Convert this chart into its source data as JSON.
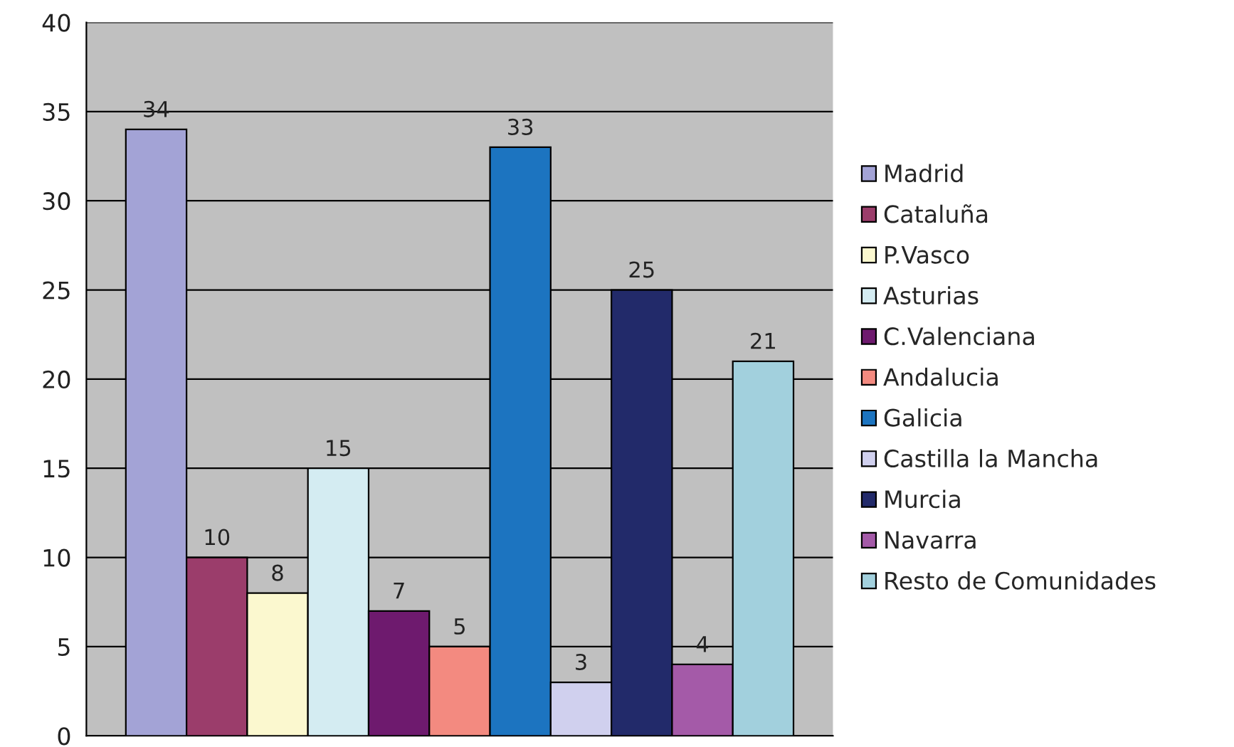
{
  "chart_data": {
    "type": "bar",
    "categories": [
      null
    ],
    "series": [
      {
        "name": "Madrid",
        "color": "#a3a3d6",
        "values": [
          34
        ]
      },
      {
        "name": "Cataluña",
        "color": "#9b3d6b",
        "values": [
          10
        ]
      },
      {
        "name": "P.Vasco",
        "color": "#fbf8cf",
        "values": [
          8
        ]
      },
      {
        "name": "Asturias",
        "color": "#d4ecf2",
        "values": [
          15
        ]
      },
      {
        "name": "C.Valenciana",
        "color": "#6e1a6e",
        "values": [
          7
        ]
      },
      {
        "name": "Andalucia",
        "color": "#f38a80",
        "values": [
          5
        ]
      },
      {
        "name": "Galicia",
        "color": "#1c74c0",
        "values": [
          33
        ]
      },
      {
        "name": "Castilla la Mancha",
        "color": "#d0d0ee",
        "values": [
          3
        ]
      },
      {
        "name": "Murcia",
        "color": "#222a6a",
        "values": [
          25
        ]
      },
      {
        "name": "Navarra",
        "color": "#a45aa8",
        "values": [
          4
        ]
      },
      {
        "name": "Resto de Comunidades",
        "color": "#a2d0dd",
        "values": [
          21
        ]
      }
    ],
    "ylim": [
      0,
      40
    ],
    "yticks": [
      0,
      5,
      10,
      15,
      20,
      25,
      30,
      35,
      40
    ],
    "grid": "y",
    "legend": "right",
    "data_labels": true
  }
}
